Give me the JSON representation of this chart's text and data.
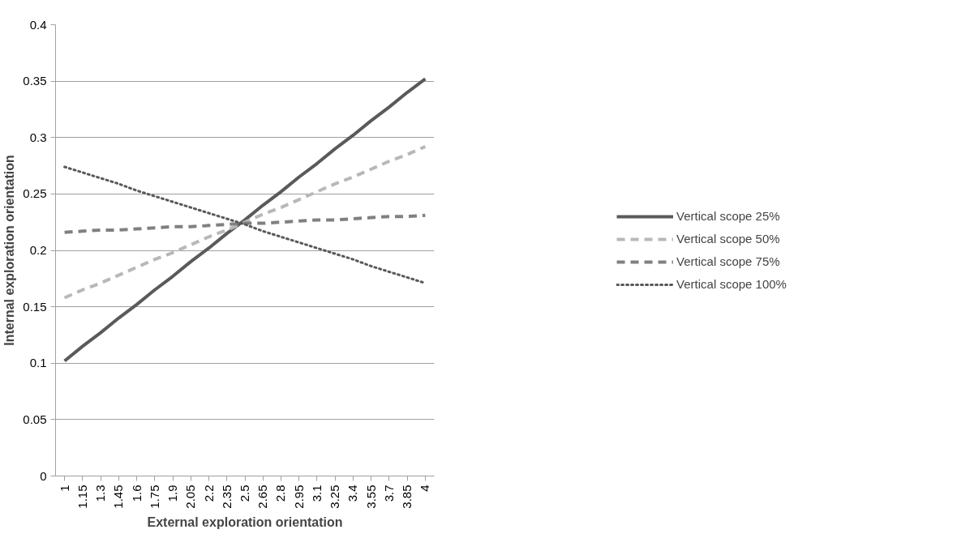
{
  "chart_data": {
    "type": "line",
    "xlabel": "External exploration orientation",
    "ylabel": "Internal exploration orientation",
    "categories": [
      "1",
      "1.15",
      "1.3",
      "1.45",
      "1.6",
      "1.75",
      "1.9",
      "2.05",
      "2.2",
      "2.35",
      "2.5",
      "2.65",
      "2.8",
      "2.95",
      "3.1",
      "3.25",
      "3.4",
      "3.55",
      "3.7",
      "3.85",
      "4"
    ],
    "ylim": [
      0,
      0.4
    ],
    "yticks": [
      0,
      0.05,
      0.1,
      0.15,
      0.2,
      0.25,
      0.3,
      0.35,
      0.4
    ],
    "grid": "y",
    "legend": "right",
    "marker": "none",
    "series": [
      {
        "name": "Vertical scope 25%",
        "color": "#5a5a5a",
        "line_style": "solid",
        "values": [
          0.102,
          0.115,
          0.127,
          0.14,
          0.152,
          0.165,
          0.177,
          0.19,
          0.202,
          0.215,
          0.227,
          0.24,
          0.252,
          0.265,
          0.277,
          0.29,
          0.302,
          0.315,
          0.327,
          0.34,
          0.352
        ]
      },
      {
        "name": "Vertical scope 50%",
        "color": "#b8b8b8",
        "line_style": "dashed",
        "values": [
          0.158,
          0.165,
          0.171,
          0.178,
          0.185,
          0.192,
          0.198,
          0.205,
          0.212,
          0.218,
          0.225,
          0.232,
          0.238,
          0.245,
          0.252,
          0.259,
          0.265,
          0.272,
          0.279,
          0.285,
          0.292
        ]
      },
      {
        "name": "Vertical scope 75%",
        "color": "#808080",
        "line_style": "dashed",
        "values": [
          0.216,
          0.217,
          0.218,
          0.218,
          0.219,
          0.22,
          0.221,
          0.221,
          0.222,
          0.223,
          0.224,
          0.224,
          0.225,
          0.226,
          0.227,
          0.227,
          0.228,
          0.229,
          0.23,
          0.23,
          0.231
        ]
      },
      {
        "name": "Vertical scope 100%",
        "color": "#595959",
        "line_style": "dotted",
        "values": [
          0.274,
          0.269,
          0.264,
          0.259,
          0.253,
          0.248,
          0.243,
          0.238,
          0.233,
          0.228,
          0.223,
          0.217,
          0.212,
          0.207,
          0.202,
          0.197,
          0.192,
          0.186,
          0.181,
          0.176,
          0.171
        ]
      }
    ]
  }
}
